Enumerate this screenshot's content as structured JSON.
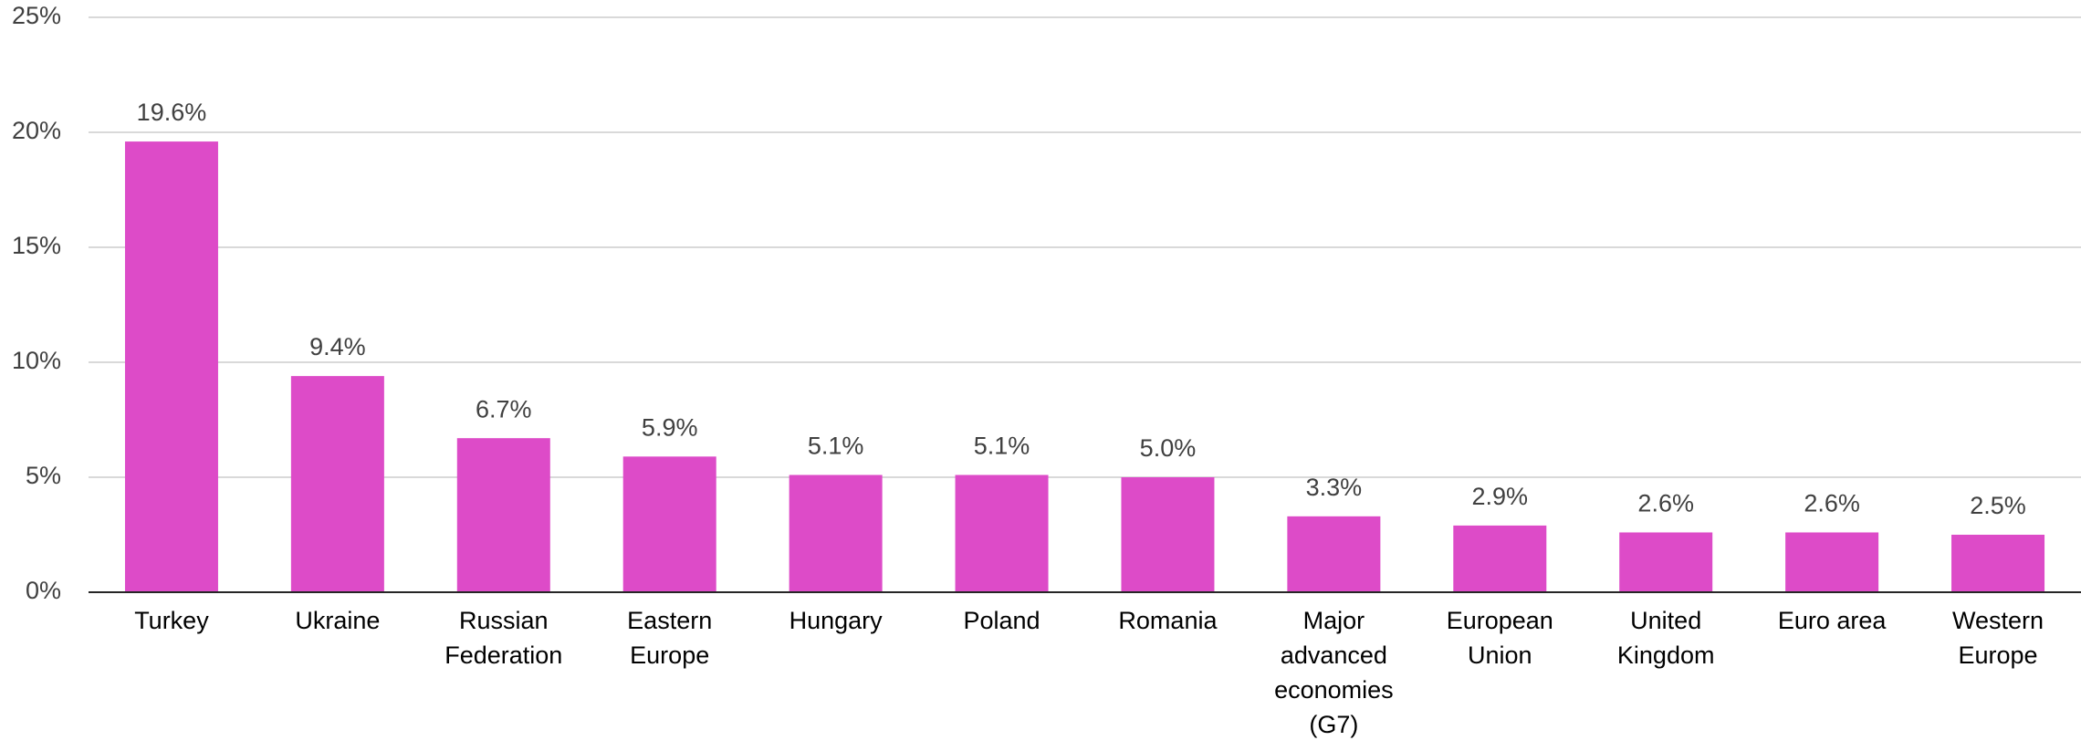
{
  "chart_data": {
    "type": "bar",
    "categories": [
      "Turkey",
      "Ukraine",
      "Russian Federation",
      "Eastern Europe",
      "Hungary",
      "Poland",
      "Romania",
      "Major advanced economies (G7)",
      "European Union",
      "United Kingdom",
      "Euro area",
      "Western Europe"
    ],
    "values": [
      19.6,
      9.4,
      6.7,
      5.9,
      5.1,
      5.1,
      5.0,
      3.3,
      2.9,
      2.6,
      2.6,
      2.5
    ],
    "value_labels": [
      "19.6%",
      "9.4%",
      "6.7%",
      "5.9%",
      "5.1%",
      "5.1%",
      "5.0%",
      "3.3%",
      "2.9%",
      "2.6%",
      "2.6%",
      "2.5%"
    ],
    "color": "#dd4bc8",
    "ylim": [
      0,
      25
    ],
    "yticks": [
      {
        "value": 0,
        "label": "0%"
      },
      {
        "value": 5,
        "label": "5%"
      },
      {
        "value": 10,
        "label": "10%"
      },
      {
        "value": 15,
        "label": "15%"
      },
      {
        "value": 20,
        "label": "20%"
      },
      {
        "value": 25,
        "label": "25%"
      }
    ],
    "grid": true
  }
}
